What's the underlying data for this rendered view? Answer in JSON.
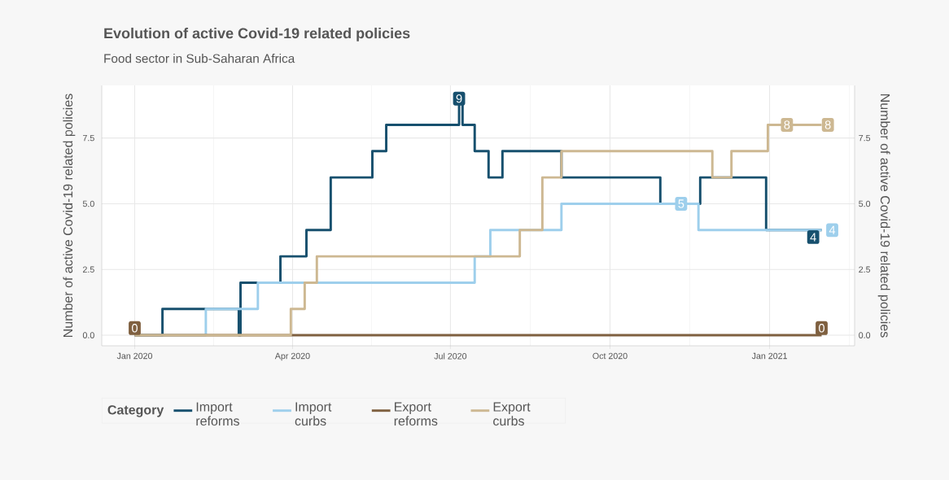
{
  "chart_data": {
    "type": "step",
    "title": "Evolution of active Covid-19 related policies",
    "subtitle": "Food sector in Sub-Saharan Africa",
    "ylabel": "Number of active Covid-19 related policies",
    "y2label": "Number of active Covid-19 related policies",
    "legend_title": "Category",
    "xlim": [
      "2019-12-13",
      "2021-02-19"
    ],
    "xticks": [
      {
        "value": "2020-01-01",
        "label": "Jan 2020"
      },
      {
        "value": "2020-04-01",
        "label": "Apr 2020"
      },
      {
        "value": "2020-07-01",
        "label": "Jul 2020"
      },
      {
        "value": "2020-10-01",
        "label": "Oct 2020"
      },
      {
        "value": "2021-01-01",
        "label": "Jan 2021"
      }
    ],
    "ylim": [
      -0.4,
      9.5
    ],
    "yticks": [
      {
        "value": 0,
        "label": "0.0"
      },
      {
        "value": 2.5,
        "label": "2.5"
      },
      {
        "value": 5,
        "label": "5.0"
      },
      {
        "value": 7.5,
        "label": "7.5"
      }
    ],
    "y2lim": [
      -0.4,
      9.5
    ],
    "y2ticks": [
      {
        "value": 0,
        "label": "0.0"
      },
      {
        "value": 2.5,
        "label": "2.5"
      },
      {
        "value": 5,
        "label": "5.0"
      },
      {
        "value": 7.5,
        "label": "7.5"
      }
    ],
    "grid": true,
    "legend": "bottom",
    "series": [
      {
        "name": "Import reforms",
        "color": "#17506e",
        "x": [
          "2020-01-01",
          "2020-01-17",
          "2020-03-01",
          "2020-03-02",
          "2020-03-25",
          "2020-04-09",
          "2020-04-23",
          "2020-05-17",
          "2020-05-25",
          "2020-07-06",
          "2020-07-08",
          "2020-07-15",
          "2020-07-23",
          "2020-07-31",
          "2020-09-03",
          "2020-10-30",
          "2020-11-22",
          "2020-12-30",
          "2021-01-31"
        ],
        "values": [
          0,
          1,
          0,
          2,
          3,
          4,
          6,
          7,
          8,
          9,
          8,
          7,
          6,
          7,
          6,
          5,
          6,
          4,
          4
        ],
        "value_labels": [
          null,
          null,
          null,
          null,
          null,
          null,
          null,
          null,
          null,
          "9",
          null,
          null,
          null,
          null,
          null,
          null,
          null,
          null,
          "4"
        ]
      },
      {
        "name": "Import curbs",
        "color": "#9ecfec",
        "x": [
          "2020-01-01",
          "2020-02-11",
          "2020-03-12",
          "2020-07-15",
          "2020-07-24",
          "2020-09-03",
          "2020-11-11",
          "2020-11-21",
          "2021-01-31"
        ],
        "values": [
          0,
          1,
          2,
          3,
          4,
          5,
          5,
          4,
          4
        ],
        "value_labels": [
          null,
          null,
          null,
          null,
          null,
          null,
          "5",
          null,
          "4"
        ]
      },
      {
        "name": "Export reforms",
        "color": "#7f6040",
        "x": [
          "2020-01-01",
          "2021-01-31"
        ],
        "values": [
          0,
          0
        ],
        "value_labels": [
          "0",
          "0"
        ]
      },
      {
        "name": "Export curbs",
        "color": "#cdb892",
        "x": [
          "2020-01-01",
          "2020-03-31",
          "2020-04-08",
          "2020-04-15",
          "2020-08-10",
          "2020-08-23",
          "2020-09-03",
          "2020-11-29",
          "2020-12-10",
          "2020-12-31",
          "2021-01-11",
          "2021-01-31"
        ],
        "values": [
          0,
          1,
          2,
          3,
          4,
          6,
          7,
          6,
          7,
          8,
          8,
          8
        ],
        "value_labels": [
          null,
          null,
          null,
          null,
          null,
          null,
          null,
          null,
          null,
          null,
          "8",
          "8"
        ]
      }
    ]
  }
}
